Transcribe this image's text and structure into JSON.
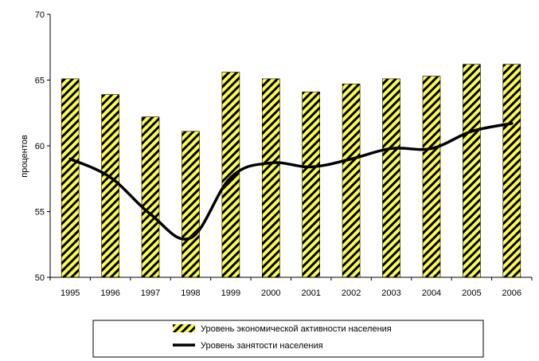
{
  "chart_data": {
    "type": "bar",
    "categories": [
      "1995",
      "1996",
      "1997",
      "1998",
      "1999",
      "2000",
      "2001",
      "2002",
      "2003",
      "2004",
      "2005",
      "2006"
    ],
    "series": [
      {
        "name": "Уровень экономической активности населения",
        "kind": "bar",
        "values": [
          65.1,
          63.9,
          62.2,
          61.1,
          65.6,
          65.1,
          64.1,
          64.7,
          65.1,
          65.3,
          66.2,
          66.2
        ]
      },
      {
        "name": "Уровень занятости населения",
        "kind": "line",
        "values": [
          59.0,
          57.6,
          54.8,
          53.0,
          57.6,
          58.7,
          58.4,
          59.0,
          59.8,
          59.8,
          61.1,
          61.7
        ]
      }
    ],
    "title": "",
    "xlabel": "",
    "ylabel": "процентов",
    "ylim": [
      50,
      70
    ],
    "yticks": [
      50,
      55,
      60,
      65,
      70
    ],
    "grid": false,
    "legend_position": "bottom",
    "colors": {
      "bar_fill": "#ffff4d",
      "bar_stripe": "#000000",
      "line": "#000000"
    }
  }
}
